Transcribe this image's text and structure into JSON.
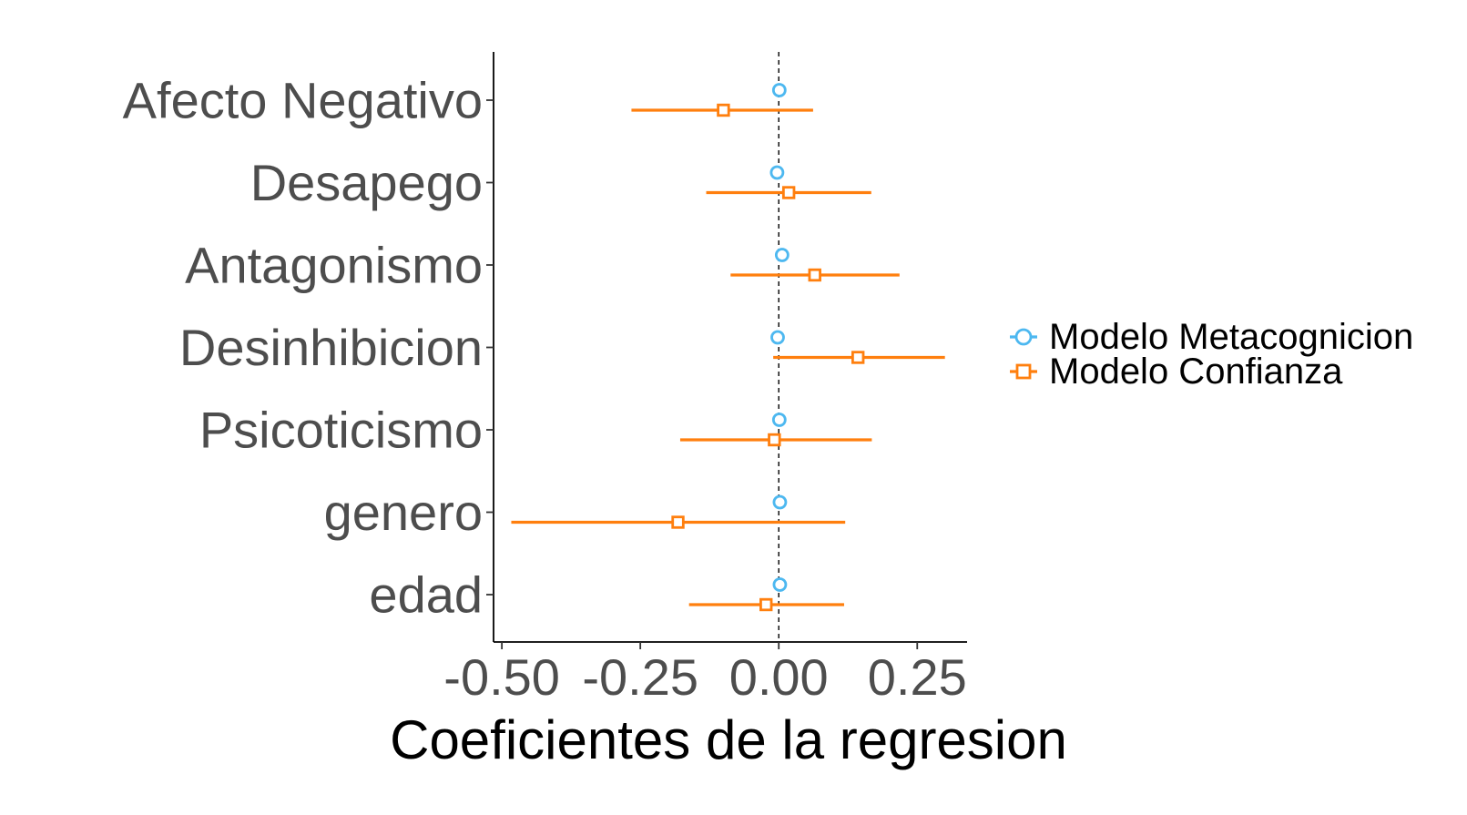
{
  "chart_data": {
    "type": "dot-whisker",
    "xlabel": "Coeficientes de la regresion",
    "ylabel": "",
    "xlim": [
      -0.515,
      0.34
    ],
    "x_ticks": [
      -0.5,
      -0.25,
      0.0,
      0.25
    ],
    "x_tick_labels": [
      "-0.50",
      "-0.25",
      "0.00",
      "0.25"
    ],
    "reference_line": 0.0,
    "grid": false,
    "legend_position": "right",
    "categories": [
      "Afecto Negativo",
      "Desapego",
      "Antagonismo",
      "Desinhibicion",
      "Psicoticismo",
      "genero",
      "edad"
    ],
    "series": [
      {
        "name": "Modelo Metacognicion",
        "color": "#4db8f0",
        "marker": "circle",
        "estimates": [
          0.001,
          -0.003,
          0.006,
          -0.002,
          0.001,
          0.002,
          0.002
        ],
        "lower": [
          0.001,
          -0.003,
          0.006,
          -0.002,
          0.001,
          -0.01,
          0.002
        ],
        "upper": [
          0.001,
          -0.003,
          0.006,
          -0.002,
          0.001,
          0.013,
          0.002
        ]
      },
      {
        "name": "Modelo Confianza",
        "color": "#ff7f0e",
        "marker": "square",
        "estimates": [
          -0.1,
          0.018,
          0.065,
          0.143,
          -0.008,
          -0.182,
          -0.023
        ],
        "lower": [
          -0.266,
          -0.131,
          -0.087,
          -0.01,
          -0.178,
          -0.483,
          -0.162
        ],
        "upper": [
          0.062,
          0.167,
          0.218,
          0.3,
          0.168,
          0.12,
          0.118
        ]
      }
    ]
  }
}
